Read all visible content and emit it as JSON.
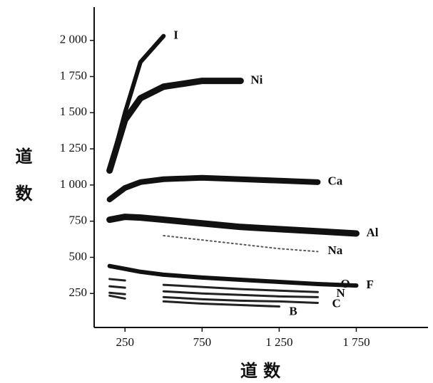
{
  "chart_data": {
    "type": "line",
    "xlabel": "道 数",
    "ylabel": "道 数",
    "x": [
      150,
      250,
      350,
      500,
      750,
      1000,
      1250,
      1500,
      1750
    ],
    "series": [
      {
        "name": "I",
        "color": "#111111",
        "values": [
          1100,
          1500,
          1850,
          2030,
          null,
          null,
          null,
          null,
          null
        ]
      },
      {
        "name": "Ni",
        "color": "#111111",
        "values": [
          1100,
          1450,
          1600,
          1680,
          1720,
          1720,
          null,
          null,
          null
        ]
      },
      {
        "name": "Ca",
        "color": "#111111",
        "values": [
          900,
          980,
          1020,
          1040,
          1050,
          1040,
          1030,
          1020,
          null
        ]
      },
      {
        "name": "Al",
        "color": "#111111",
        "values": [
          760,
          780,
          775,
          760,
          735,
          710,
          695,
          680,
          665
        ]
      },
      {
        "name": "Na",
        "color": "#555555",
        "values": [
          null,
          null,
          null,
          650,
          620,
          590,
          560,
          540,
          null
        ]
      },
      {
        "name": "F",
        "color": "#111111",
        "values": [
          440,
          420,
          400,
          380,
          360,
          345,
          330,
          315,
          305
        ]
      },
      {
        "name": "O",
        "color": "#222222",
        "values": [
          350,
          340,
          null,
          310,
          295,
          280,
          270,
          260,
          null
        ]
      },
      {
        "name": "N",
        "color": "#222222",
        "values": [
          300,
          290,
          null,
          265,
          250,
          240,
          230,
          225,
          null
        ]
      },
      {
        "name": "C",
        "color": "#222222",
        "values": [
          255,
          245,
          null,
          225,
          210,
          200,
          195,
          185,
          null
        ]
      },
      {
        "name": "B",
        "color": "#222222",
        "values": [
          235,
          215,
          null,
          195,
          180,
          170,
          160,
          null,
          null
        ]
      }
    ],
    "xlim": [
      50,
      2215
    ],
    "ylim": [
      15,
      2230
    ],
    "xticks": [
      250,
      750,
      {
        "value": 1250,
        "label": "1 250"
      },
      {
        "value": 1750,
        "label": "1 750"
      }
    ],
    "yticks": [
      250,
      500,
      750,
      {
        "value": 1000,
        "label": "1 000"
      },
      {
        "value": 1250,
        "label": "1 250"
      },
      {
        "value": 1500,
        "label": "1 500"
      },
      {
        "value": 1750,
        "label": "1 750"
      },
      {
        "value": 2000,
        "label": "2 000"
      }
    ],
    "grid": false
  }
}
